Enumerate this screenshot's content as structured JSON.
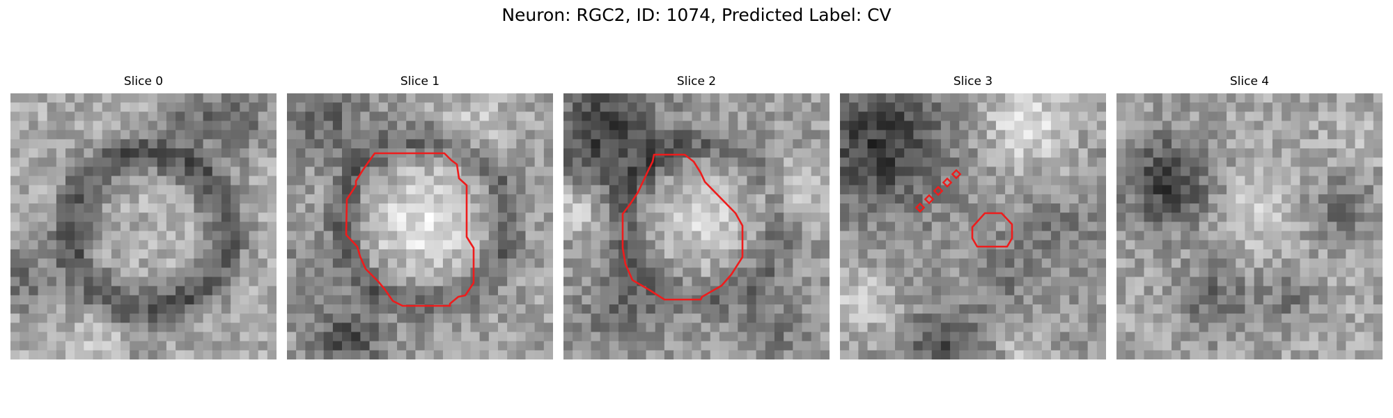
{
  "figure": {
    "title": "Neuron: RGC2, ID: 1074, Predicted Label: CV",
    "contour_color": "#ee1c1c",
    "panels": [
      {
        "label": "Slice 0",
        "contour": "none"
      },
      {
        "label": "Slice 1",
        "contour": "large-outline"
      },
      {
        "label": "Slice 2",
        "contour": "large-outline"
      },
      {
        "label": "Slice 3",
        "contour": "small-outline-with-dotted-fragment"
      },
      {
        "label": "Slice 4",
        "contour": "none"
      }
    ]
  }
}
